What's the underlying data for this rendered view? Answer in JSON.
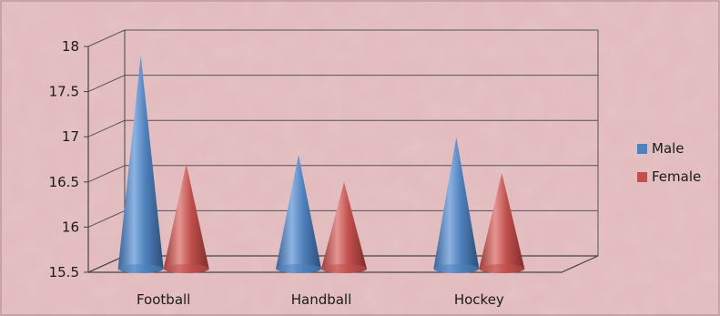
{
  "chart_data": {
    "type": "bar",
    "style": "3d-cone",
    "categories": [
      "Football",
      "Handball",
      "Hockey"
    ],
    "series": [
      {
        "name": "Male",
        "values": [
          17.9,
          16.8,
          17.0
        ],
        "color": "#4f81bd"
      },
      {
        "name": "Female",
        "values": [
          16.7,
          16.5,
          16.6
        ],
        "color": "#c0504d"
      }
    ],
    "ylim": [
      15.5,
      18
    ],
    "yticks": [
      "15.5",
      "16",
      "16.5",
      "17",
      "17.5",
      "18"
    ],
    "ytick_values": [
      15.5,
      16,
      16.5,
      17,
      17.5,
      18
    ],
    "grid": true,
    "legend_position": "right",
    "background": "pink-marble-texture"
  }
}
